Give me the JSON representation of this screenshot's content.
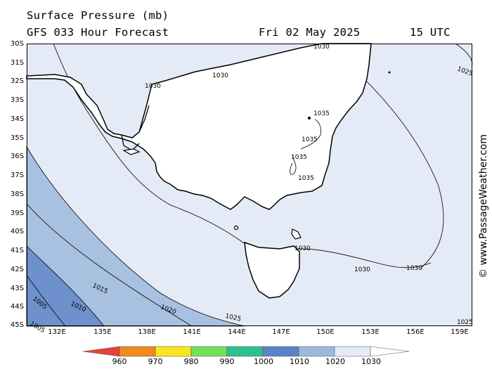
{
  "header": {
    "title": "Surface Pressure (mb)",
    "subtitle": "GFS 033 Hour Forecast",
    "date": "Fri 02 May 2025",
    "time": "15 UTC"
  },
  "credit": "© www.PassageWeather.com",
  "axes": {
    "lat_labels": [
      "30S",
      "31S",
      "32S",
      "33S",
      "34S",
      "35S",
      "36S",
      "37S",
      "38S",
      "39S",
      "40S",
      "41S",
      "42S",
      "43S",
      "44S",
      "45S"
    ],
    "lon_labels": [
      "132E",
      "135E",
      "138E",
      "141E",
      "144E",
      "147E",
      "150E",
      "153E",
      "156E",
      "159E"
    ]
  },
  "contour_labels": [
    "1030",
    "1030",
    "1030",
    "1025",
    "1035",
    "1035",
    "1035",
    "1035",
    "1030",
    "1030",
    "1030",
    "1005",
    "1010",
    "1015",
    "1020",
    "1025",
    "1005",
    "1025"
  ],
  "colorbar": {
    "labels": [
      "960",
      "970",
      "980",
      "990",
      "1000",
      "1010",
      "1020",
      "1030"
    ],
    "colors": [
      "#e8413c",
      "#f08a1c",
      "#fbe51f",
      "#73e05a",
      "#2ec08e",
      "#5b83c8",
      "#9cb8dd",
      "#e4ebf6"
    ]
  },
  "colors": {
    "band_1030": "#e4ebf6",
    "band_1020": "#a8c1e1",
    "band_1010": "#6e90cd",
    "band_1000": "#3fae88",
    "land": "#ffffff"
  }
}
